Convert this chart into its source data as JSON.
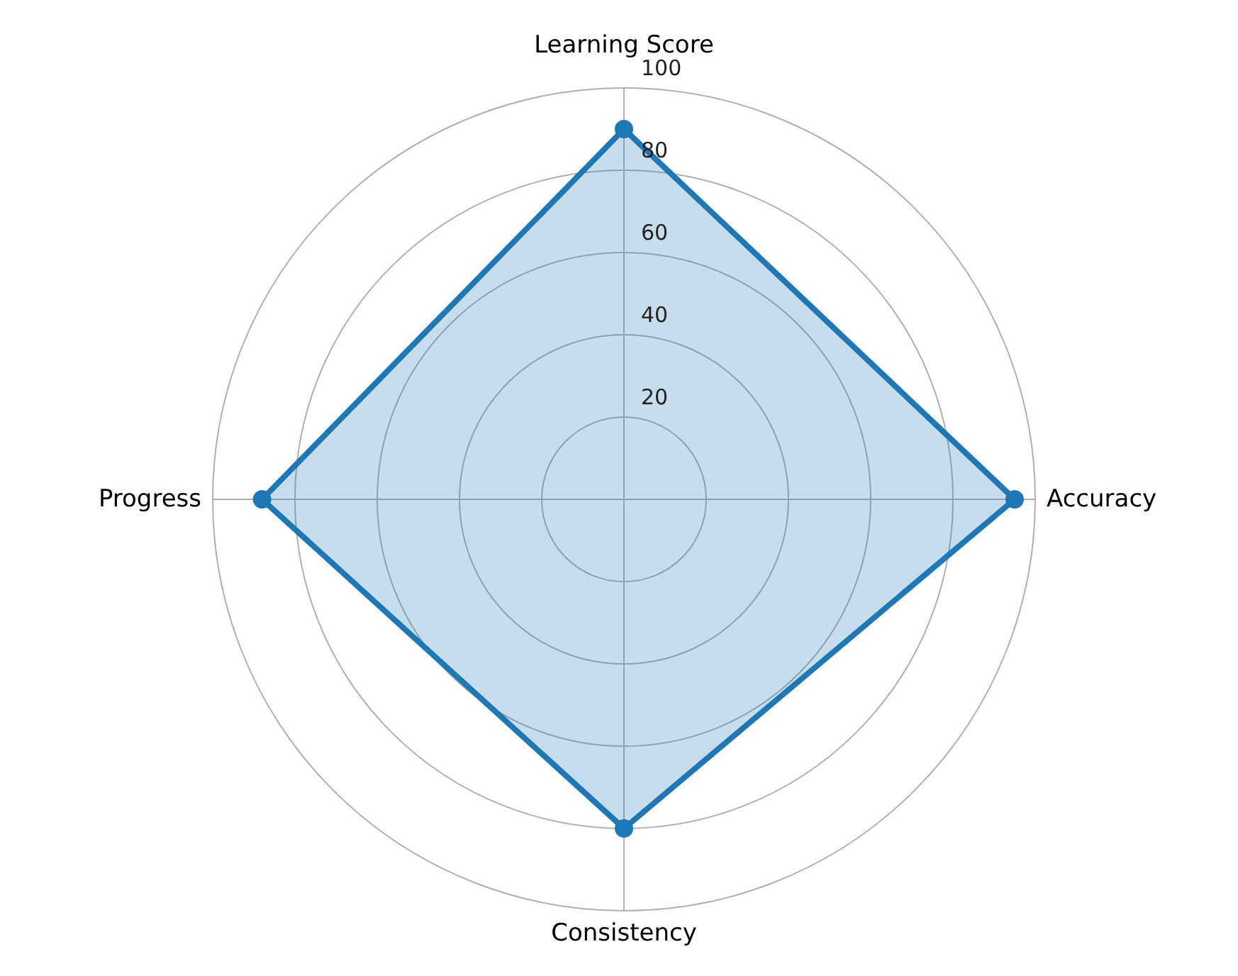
{
  "chart_data": {
    "type": "radar",
    "categories": [
      "Learning Score",
      "Accuracy",
      "Consistency",
      "Progress"
    ],
    "series": [
      {
        "color": "#1f77b4",
        "values": [
          90,
          95,
          80,
          88
        ]
      }
    ],
    "ylim": [
      0,
      100
    ],
    "yticks": [
      20,
      40,
      60,
      80,
      100
    ],
    "grid": true,
    "marker": "circle"
  }
}
